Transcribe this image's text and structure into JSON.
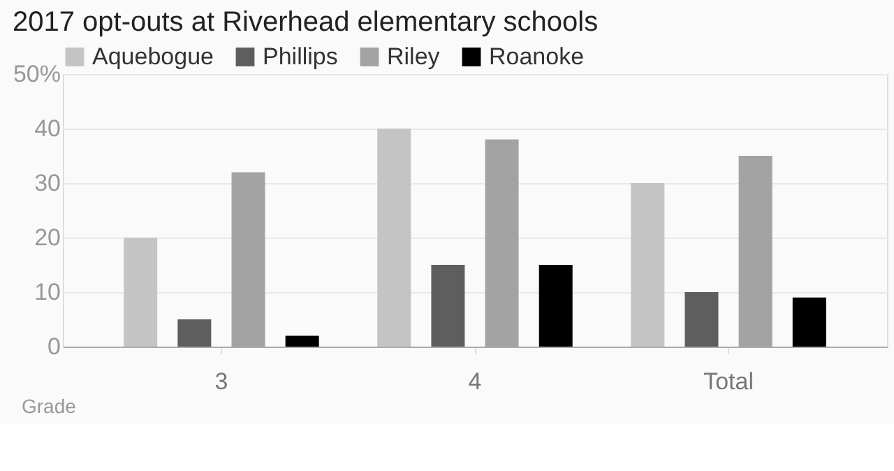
{
  "chart_data": {
    "type": "bar",
    "title": "2017 opt-outs at Riverhead elementary schools",
    "xlabel": "Grade",
    "categories": [
      "3",
      "4",
      "Total"
    ],
    "series": [
      {
        "name": "Aquebogue",
        "color": "#c4c4c4",
        "values": [
          20,
          40,
          30
        ]
      },
      {
        "name": "Phillips",
        "color": "#5e5e5e",
        "values": [
          5,
          15,
          10
        ]
      },
      {
        "name": "Riley",
        "color": "#a3a3a3",
        "values": [
          32,
          38,
          35
        ]
      },
      {
        "name": "Roanoke",
        "color": "#000000",
        "values": [
          2,
          15,
          9
        ]
      }
    ],
    "ylim": [
      0,
      50
    ],
    "yticks": [
      0,
      10,
      20,
      30,
      40,
      {
        "value": 50,
        "label": "50%"
      }
    ],
    "grid": "y",
    "legend": "top left"
  }
}
